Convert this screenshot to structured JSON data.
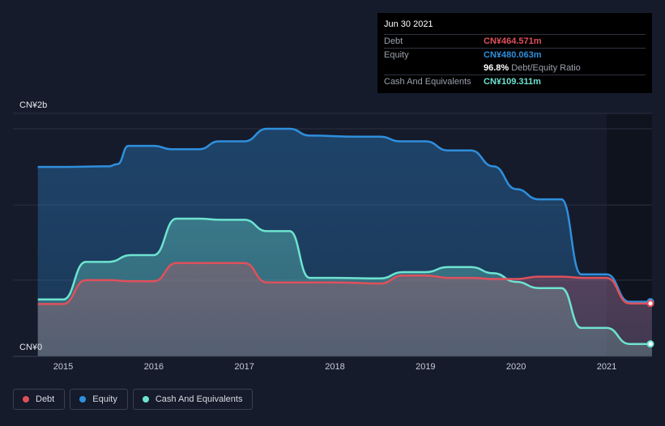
{
  "tooltip": {
    "date": "Jun 30 2021",
    "debt_label": "Debt",
    "debt_value": "CN¥464.571m",
    "equity_label": "Equity",
    "equity_value": "CN¥480.063m",
    "ratio_value": "96.8%",
    "ratio_label": "Debt/Equity Ratio",
    "cash_label": "Cash And Equivalents",
    "cash_value": "CN¥109.311m"
  },
  "legend": {
    "debt": "Debt",
    "equity": "Equity",
    "cash": "Cash And Equivalents"
  },
  "colors": {
    "debt": "#e0505b",
    "equity": "#2f8fdd",
    "cash": "#6ee3d0",
    "background": "#151b2b"
  },
  "chart_data": {
    "type": "area",
    "y_tick_labels": [
      "CN¥0",
      "CN¥2b"
    ],
    "x_tick_labels": [
      "2015",
      "2016",
      "2017",
      "2018",
      "2019",
      "2020",
      "2021"
    ],
    "ylim": [
      0,
      2000000000
    ],
    "xlim": [
      2014.55,
      2021.5
    ],
    "grid": true,
    "legend_position": "bottom-left",
    "series": [
      {
        "name": "Equity",
        "color": "#2f8fdd",
        "points": [
          [
            2014.72,
            1.665
          ],
          [
            2015.0,
            1.665
          ],
          [
            2015.5,
            1.67
          ],
          [
            2015.6,
            1.69
          ],
          [
            2015.72,
            1.85
          ],
          [
            2016.0,
            1.85
          ],
          [
            2016.2,
            1.82
          ],
          [
            2016.5,
            1.82
          ],
          [
            2016.72,
            1.89
          ],
          [
            2017.0,
            1.89
          ],
          [
            2017.25,
            2.0
          ],
          [
            2017.5,
            2.0
          ],
          [
            2017.72,
            1.94
          ],
          [
            2018.25,
            1.93
          ],
          [
            2018.5,
            1.93
          ],
          [
            2018.72,
            1.89
          ],
          [
            2019.0,
            1.89
          ],
          [
            2019.25,
            1.81
          ],
          [
            2019.5,
            1.81
          ],
          [
            2019.75,
            1.67
          ],
          [
            2020.0,
            1.47
          ],
          [
            2020.25,
            1.38
          ],
          [
            2020.5,
            1.38
          ],
          [
            2020.72,
            0.72
          ],
          [
            2021.0,
            0.72
          ],
          [
            2021.25,
            0.48
          ],
          [
            2021.5,
            0.48
          ]
        ]
      },
      {
        "name": "Cash And Equivalents",
        "color": "#6ee3d0",
        "points": [
          [
            2014.72,
            0.5
          ],
          [
            2015.0,
            0.5
          ],
          [
            2015.25,
            0.83
          ],
          [
            2015.5,
            0.83
          ],
          [
            2015.75,
            0.89
          ],
          [
            2016.0,
            0.89
          ],
          [
            2016.25,
            1.21
          ],
          [
            2016.5,
            1.21
          ],
          [
            2016.75,
            1.2
          ],
          [
            2017.0,
            1.2
          ],
          [
            2017.25,
            1.1
          ],
          [
            2017.5,
            1.1
          ],
          [
            2017.72,
            0.69
          ],
          [
            2018.0,
            0.69
          ],
          [
            2018.5,
            0.685
          ],
          [
            2018.75,
            0.74
          ],
          [
            2019.0,
            0.74
          ],
          [
            2019.25,
            0.785
          ],
          [
            2019.5,
            0.785
          ],
          [
            2019.75,
            0.73
          ],
          [
            2020.0,
            0.655
          ],
          [
            2020.25,
            0.6
          ],
          [
            2020.5,
            0.6
          ],
          [
            2020.72,
            0.25
          ],
          [
            2021.0,
            0.25
          ],
          [
            2021.25,
            0.109
          ],
          [
            2021.5,
            0.109
          ]
        ]
      },
      {
        "name": "Debt",
        "color": "#e0505b",
        "points": [
          [
            2014.72,
            0.46
          ],
          [
            2015.0,
            0.46
          ],
          [
            2015.25,
            0.67
          ],
          [
            2015.5,
            0.67
          ],
          [
            2015.75,
            0.66
          ],
          [
            2016.0,
            0.66
          ],
          [
            2016.25,
            0.82
          ],
          [
            2016.5,
            0.82
          ],
          [
            2016.75,
            0.82
          ],
          [
            2017.0,
            0.82
          ],
          [
            2017.25,
            0.65
          ],
          [
            2017.5,
            0.65
          ],
          [
            2017.72,
            0.65
          ],
          [
            2018.0,
            0.65
          ],
          [
            2018.5,
            0.64
          ],
          [
            2018.75,
            0.71
          ],
          [
            2019.0,
            0.71
          ],
          [
            2019.25,
            0.69
          ],
          [
            2019.5,
            0.69
          ],
          [
            2019.75,
            0.68
          ],
          [
            2020.0,
            0.68
          ],
          [
            2020.25,
            0.7
          ],
          [
            2020.5,
            0.7
          ],
          [
            2020.75,
            0.69
          ],
          [
            2021.0,
            0.69
          ],
          [
            2021.25,
            0.465
          ],
          [
            2021.5,
            0.465
          ]
        ]
      }
    ]
  }
}
